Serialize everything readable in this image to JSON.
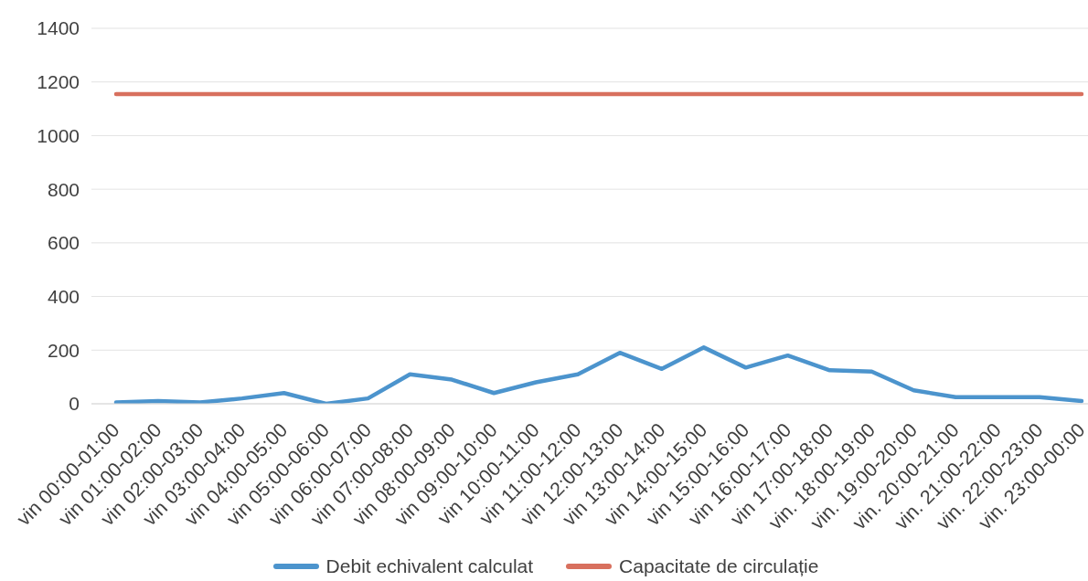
{
  "chart_data": {
    "type": "line",
    "categories": [
      "vin 00:00-01:00",
      "vin 01:00-02:00",
      "vin 02:00-03:00",
      "vin 03:00-04:00",
      "vin 04:00-05:00",
      "vin 05:00-06:00",
      "vin 06:00-07:00",
      "vin 07:00-08:00",
      "vin 08:00-09:00",
      "vin 09:00-10:00",
      "vin 10:00-11:00",
      "vin 11:00-12:00",
      "vin 12:00-13:00",
      "vin 13:00-14:00",
      "vin 14:00-15:00",
      "vin 15:00-16:00",
      "vin 16:00-17:00",
      "vin 17:00-18:00",
      "vin. 18:00-19:00",
      "vin. 19:00-20:00",
      "vin. 20:00-21:00",
      "vin. 21:00-22:00",
      "vin. 22:00-23:00",
      "vin. 23:00-00:00"
    ],
    "series": [
      {
        "name": "Debit echivalent calculat",
        "color": "#4c94cd",
        "values": [
          5,
          10,
          5,
          20,
          40,
          0,
          20,
          110,
          90,
          40,
          80,
          110,
          190,
          130,
          210,
          135,
          180,
          125,
          120,
          50,
          25,
          25,
          25,
          10
        ]
      },
      {
        "name": "Capacitate de circulație",
        "color": "#d8705e",
        "values": [
          1155,
          1155,
          1155,
          1155,
          1155,
          1155,
          1155,
          1155,
          1155,
          1155,
          1155,
          1155,
          1155,
          1155,
          1155,
          1155,
          1155,
          1155,
          1155,
          1155,
          1155,
          1155,
          1155,
          1155
        ]
      }
    ],
    "ylim": [
      0,
      1400
    ],
    "yticks": [
      0,
      200,
      400,
      600,
      800,
      1000,
      1200,
      1400
    ],
    "grid": "y",
    "legend": "bottom",
    "marker": "none",
    "line_style": "solid"
  }
}
